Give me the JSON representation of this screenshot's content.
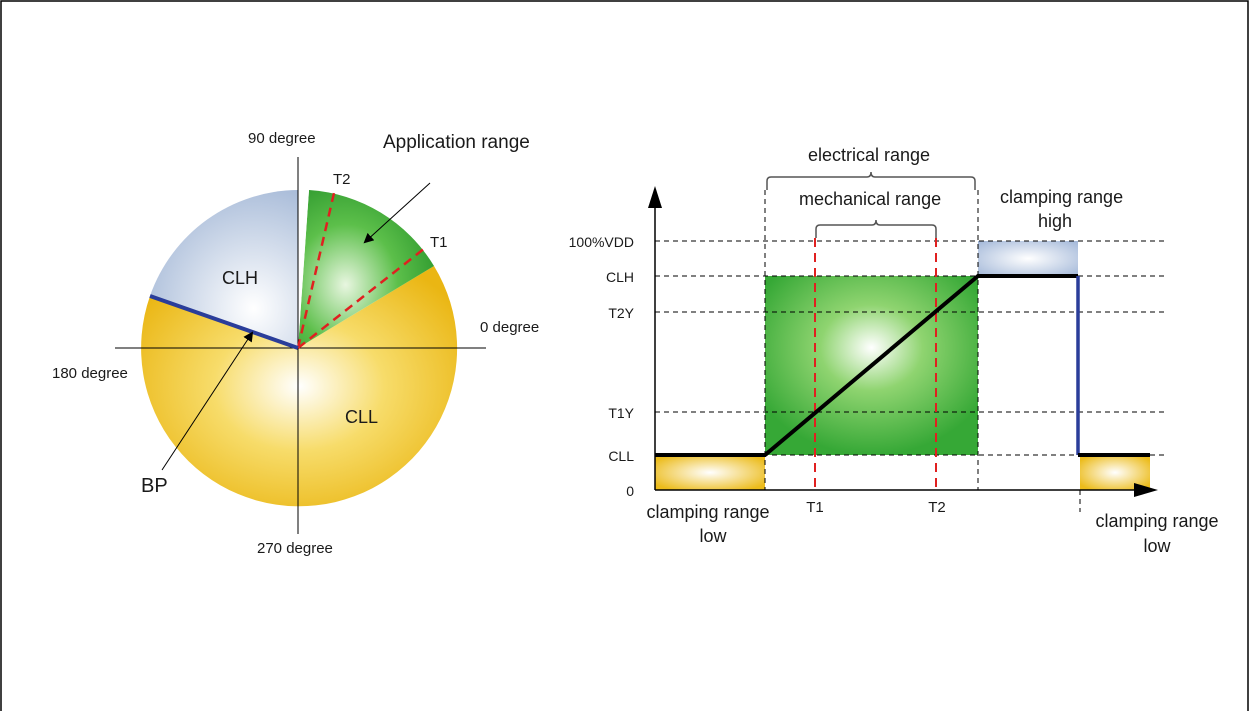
{
  "circle": {
    "labels": {
      "deg90": "90 degree",
      "deg0": "0 degree",
      "deg180": "180 degree",
      "deg270": "270 degree",
      "app_range": "Application range",
      "clh": "CLH",
      "cll": "CLL",
      "bp": "BP",
      "t1": "T1",
      "t2": "T2"
    }
  },
  "graph": {
    "electrical_range": "electrical range",
    "mechanical_range": "mechanical range",
    "clamp_high_line1": "clamping range",
    "clamp_high_line2": "high",
    "clamp_low_left_line1": "clamping range",
    "clamp_low_left_line2": "low",
    "clamp_low_right_line1": "clamping range",
    "clamp_low_right_line2": "low",
    "y_ticks": {
      "vdd": "100%VDD",
      "clh": "CLH",
      "t2y": "T2Y",
      "t1y": "T1Y",
      "cll": "CLL",
      "zero": "0"
    },
    "x_ticks": {
      "t1": "T1",
      "t2": "T2"
    }
  },
  "colors": {
    "green": "#3aa83a",
    "blue_gray": "#9fb4d6",
    "yellow": "#f0c020",
    "red_dash": "#e02020",
    "bp_blue": "#2a3d9a",
    "line": "#000000"
  }
}
